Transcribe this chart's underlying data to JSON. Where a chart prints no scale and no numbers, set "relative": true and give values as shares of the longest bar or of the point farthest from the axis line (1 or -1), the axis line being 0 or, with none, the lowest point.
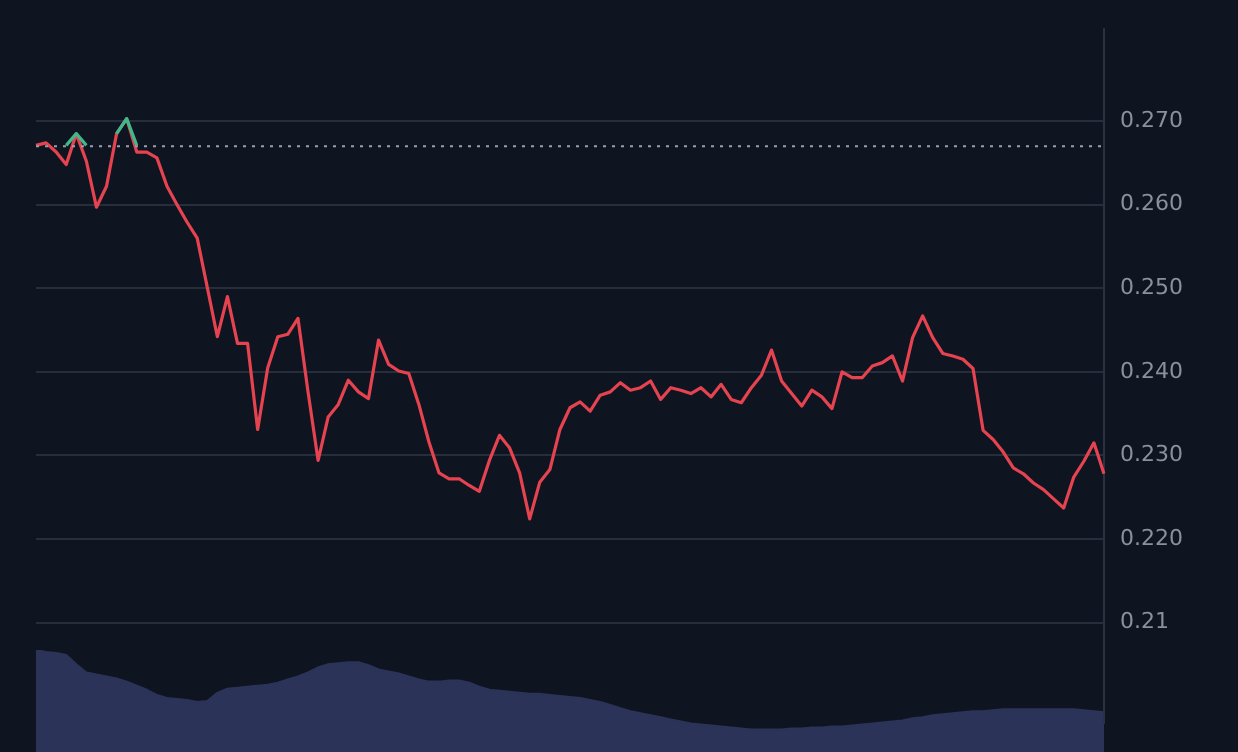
{
  "chart_data": [
    {
      "type": "line",
      "categories": [
        null,
        null,
        null,
        null,
        null,
        null,
        null,
        null,
        null,
        null,
        null,
        null,
        null,
        null,
        null,
        null,
        null,
        null,
        null,
        null,
        null,
        null,
        null,
        null,
        null,
        null,
        null,
        null,
        null,
        null,
        null,
        null,
        null,
        null,
        null,
        null,
        null,
        null,
        null,
        null,
        null,
        null,
        null,
        null,
        null,
        null,
        null,
        null,
        null,
        null,
        null,
        null,
        null,
        null,
        null,
        null,
        null,
        null,
        null,
        null,
        null,
        null,
        null,
        null,
        null,
        null,
        null,
        null,
        null,
        null,
        null,
        null,
        null,
        null,
        null,
        null,
        null,
        null,
        null,
        null,
        null,
        null,
        null,
        null,
        null,
        null,
        null,
        null,
        null,
        null,
        null,
        null,
        null,
        null,
        null,
        null,
        null,
        null,
        null,
        null,
        null,
        null,
        null,
        null,
        null,
        null,
        null
      ],
      "series": [
        {
          "color": "#e5434f",
          "values": [
            0.2671,
            0.2674,
            0.2663,
            0.2648,
            0.2685,
            0.2652,
            0.2597,
            0.2622,
            0.2685,
            0.2703,
            0.2663,
            0.2663,
            0.2656,
            0.2622,
            0.26,
            0.2579,
            0.256,
            0.2501,
            0.2442,
            0.249,
            0.2434,
            0.2434,
            0.2331,
            0.2405,
            0.2442,
            0.2445,
            0.2464,
            0.2376,
            0.2294,
            0.2346,
            0.2361,
            0.239,
            0.2376,
            0.2368,
            0.2438,
            0.2409,
            0.2401,
            0.2398,
            0.2361,
            0.2316,
            0.2279,
            0.2272,
            0.2272,
            0.2264,
            0.2257,
            0.2294,
            0.2324,
            0.2309,
            0.2279,
            0.2224,
            0.2268,
            0.2283,
            0.2331,
            0.2357,
            0.2364,
            0.2353,
            0.2372,
            0.2376,
            0.2387,
            0.2378,
            0.2381,
            0.2389,
            0.2367,
            0.2381,
            0.2378,
            0.2374,
            0.2381,
            0.237,
            0.2385,
            0.2367,
            0.2363,
            0.2381,
            0.2396,
            0.2426,
            0.2389,
            0.2374,
            0.2359,
            0.2378,
            0.237,
            0.2356,
            0.24,
            0.2393,
            0.2393,
            0.2407,
            0.2411,
            0.2419,
            0.2389,
            0.2441,
            0.2467,
            0.2441,
            0.2422,
            0.2419,
            0.2415,
            0.2404,
            0.233,
            0.2319,
            0.2304,
            0.2285,
            0.2278,
            0.2267,
            0.2259,
            0.2248,
            0.2237,
            0.2274,
            0.2293,
            0.2315,
            0.2278
          ]
        },
        {
          "color": "#3fb98c",
          "values": [
            null,
            null,
            null,
            0.2671,
            0.2685,
            0.2671,
            null,
            null,
            0.2685,
            0.2703,
            0.2671,
            null,
            null,
            null,
            null,
            null,
            null,
            null,
            null,
            null,
            null,
            null,
            null,
            null,
            null,
            null,
            null,
            null,
            null,
            null,
            null,
            null,
            null,
            null,
            null,
            null,
            null,
            null,
            null,
            null,
            null,
            null,
            null,
            null,
            null,
            null,
            null,
            null,
            null,
            null,
            null,
            null,
            null,
            null,
            null,
            null,
            null,
            null,
            null,
            null,
            null,
            null,
            null,
            null,
            null,
            null,
            null,
            null,
            null,
            null,
            null,
            null,
            null,
            null,
            null,
            null,
            null,
            null,
            null,
            null,
            null,
            null,
            null,
            null,
            null,
            null,
            null,
            null,
            null,
            null,
            null,
            null,
            null,
            null,
            null,
            null,
            null,
            null,
            null,
            null,
            null,
            null,
            null,
            null,
            null,
            null,
            null
          ]
        }
      ],
      "ylim": [
        0.198,
        0.281
      ],
      "yticks": [
        0.21,
        {
          "value": 0.22,
          "label": "0.220"
        },
        {
          "value": 0.23,
          "label": "0.230"
        },
        {
          "value": 0.24,
          "label": "0.240"
        },
        {
          "value": 0.25,
          "label": "0.250"
        },
        {
          "value": 0.26,
          "label": "0.260"
        },
        {
          "value": 0.27,
          "label": "0.270"
        }
      ],
      "ref_lines": [
        {
          "axis": "y",
          "value": 0.267,
          "color": "#9aa0aa",
          "line_style": "dotted"
        }
      ],
      "grid": "y",
      "legend": false,
      "marker": "none",
      "line_style": "solid",
      "tick_labels": "y"
    },
    {
      "type": "area",
      "relative": true,
      "color": "#2b3358",
      "categories": [
        null,
        null,
        null,
        null,
        null,
        null,
        null,
        null,
        null,
        null,
        null,
        null,
        null,
        null,
        null,
        null,
        null,
        null,
        null,
        null,
        null,
        null,
        null,
        null,
        null,
        null,
        null,
        null,
        null,
        null,
        null,
        null,
        null,
        null,
        null,
        null,
        null,
        null,
        null,
        null,
        null,
        null,
        null,
        null,
        null,
        null,
        null,
        null,
        null,
        null,
        null,
        null,
        null,
        null,
        null,
        null,
        null,
        null,
        null,
        null,
        null,
        null,
        null,
        null,
        null,
        null,
        null,
        null,
        null,
        null,
        null,
        null,
        null,
        null,
        null,
        null,
        null,
        null,
        null,
        null,
        null,
        null,
        null,
        null,
        null,
        null,
        null,
        null,
        null,
        null,
        null,
        null,
        null,
        null,
        null,
        null,
        null,
        null,
        null,
        null,
        null,
        null,
        null,
        null,
        null,
        null,
        null
      ],
      "values": [
        1.0,
        0.98,
        0.97,
        0.95,
        0.86,
        0.78,
        0.76,
        0.74,
        0.72,
        0.69,
        0.65,
        0.61,
        0.56,
        0.53,
        0.52,
        0.51,
        0.49,
        0.5,
        0.58,
        0.62,
        0.63,
        0.64,
        0.65,
        0.66,
        0.68,
        0.71,
        0.74,
        0.78,
        0.83,
        0.86,
        0.87,
        0.88,
        0.88,
        0.85,
        0.81,
        0.79,
        0.77,
        0.74,
        0.71,
        0.69,
        0.69,
        0.7,
        0.7,
        0.68,
        0.64,
        0.61,
        0.6,
        0.59,
        0.58,
        0.57,
        0.57,
        0.56,
        0.55,
        0.54,
        0.53,
        0.51,
        0.49,
        0.46,
        0.43,
        0.4,
        0.38,
        0.36,
        0.34,
        0.32,
        0.3,
        0.28,
        0.27,
        0.26,
        0.25,
        0.24,
        0.23,
        0.22,
        0.22,
        0.22,
        0.22,
        0.23,
        0.23,
        0.24,
        0.24,
        0.25,
        0.25,
        0.26,
        0.27,
        0.28,
        0.29,
        0.3,
        0.31,
        0.33,
        0.34,
        0.36,
        0.37,
        0.38,
        0.39,
        0.4,
        0.4,
        0.41,
        0.42,
        0.42,
        0.42,
        0.42,
        0.42,
        0.42,
        0.42,
        0.42,
        0.41,
        0.4,
        0.39
      ],
      "legend": false,
      "tick_labels": false
    }
  ]
}
